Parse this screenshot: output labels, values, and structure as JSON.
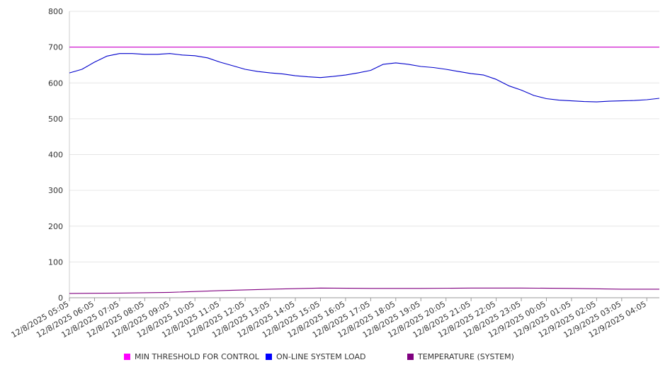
{
  "chart_data": {
    "type": "line",
    "title": "",
    "xlabel": "",
    "ylabel": "",
    "ylim": [
      0,
      800
    ],
    "yticks": [
      0,
      100,
      200,
      300,
      400,
      500,
      600,
      700,
      800
    ],
    "xlim": [
      "12/8/2025 05:05",
      "12/9/2025 04:35"
    ],
    "grid": true,
    "legend_position": "bottom",
    "x_tick_labels": [
      "12/8/2025 05:05",
      "12/8/2025 06:05",
      "12/8/2025 07:05",
      "12/8/2025 08:05",
      "12/8/2025 09:05",
      "12/8/2025 10:05",
      "12/8/2025 11:05",
      "12/8/2025 12:05",
      "12/8/2025 13:05",
      "12/8/2025 14:05",
      "12/8/2025 15:05",
      "12/8/2025 16:05",
      "12/8/2025 17:05",
      "12/8/2025 18:05",
      "12/8/2025 19:05",
      "12/8/2025 20:05",
      "12/8/2025 21:05",
      "12/8/2025 22:05",
      "12/8/2025 23:05",
      "12/9/2025 00:05",
      "12/9/2025 01:05",
      "12/9/2025 02:05",
      "12/9/2025 03:05",
      "12/9/2025 04:05"
    ],
    "series": [
      {
        "name": "MIN THRESHOLD FOR CONTROL",
        "color": "#cc00cc",
        "x": [
          "12/8/2025 05:05",
          "12/9/2025 04:35"
        ],
        "values": [
          700,
          700
        ]
      },
      {
        "name": "ON-LINE SYSTEM LOAD",
        "color": "#0000cc",
        "x": [
          "12/8/2025 05:05",
          "12/8/2025 05:35",
          "12/8/2025 06:05",
          "12/8/2025 06:35",
          "12/8/2025 07:05",
          "12/8/2025 07:35",
          "12/8/2025 08:05",
          "12/8/2025 08:35",
          "12/8/2025 09:05",
          "12/8/2025 09:35",
          "12/8/2025 10:05",
          "12/8/2025 10:35",
          "12/8/2025 11:05",
          "12/8/2025 11:35",
          "12/8/2025 12:05",
          "12/8/2025 12:35",
          "12/8/2025 13:05",
          "12/8/2025 13:35",
          "12/8/2025 14:05",
          "12/8/2025 14:35",
          "12/8/2025 15:05",
          "12/8/2025 15:35",
          "12/8/2025 16:05",
          "12/8/2025 16:35",
          "12/8/2025 17:05",
          "12/8/2025 17:35",
          "12/8/2025 18:05",
          "12/8/2025 18:35",
          "12/8/2025 19:05",
          "12/8/2025 19:35",
          "12/8/2025 20:05",
          "12/8/2025 20:35",
          "12/8/2025 21:05",
          "12/8/2025 21:35",
          "12/8/2025 22:05",
          "12/8/2025 22:35",
          "12/8/2025 23:05",
          "12/8/2025 23:35",
          "12/9/2025 00:05",
          "12/9/2025 00:35",
          "12/9/2025 01:05",
          "12/9/2025 01:35",
          "12/9/2025 02:05",
          "12/9/2025 02:35",
          "12/9/2025 03:05",
          "12/9/2025 03:35",
          "12/9/2025 04:05",
          "12/9/2025 04:35"
        ],
        "values": [
          628,
          638,
          658,
          675,
          682,
          682,
          680,
          680,
          682,
          678,
          676,
          670,
          658,
          648,
          638,
          632,
          628,
          625,
          620,
          617,
          615,
          618,
          622,
          628,
          635,
          652,
          656,
          652,
          646,
          643,
          638,
          632,
          626,
          622,
          610,
          592,
          580,
          565,
          556,
          552,
          550,
          548,
          547,
          549,
          550,
          551,
          553,
          557
        ]
      },
      {
        "name": "TEMPERATURE (SYSTEM)",
        "color": "#800080",
        "x": [
          "12/8/2025 05:05",
          "12/8/2025 07:05",
          "12/8/2025 09:05",
          "12/8/2025 11:05",
          "12/8/2025 13:05",
          "12/8/2025 15:05",
          "12/8/2025 17:05",
          "12/8/2025 19:05",
          "12/8/2025 21:05",
          "12/8/2025 23:05",
          "12/9/2025 01:05",
          "12/9/2025 03:05",
          "12/9/2025 04:35"
        ],
        "values": [
          12,
          13,
          15,
          20,
          24,
          27,
          26,
          26,
          27,
          27,
          26,
          24,
          24
        ]
      }
    ]
  }
}
